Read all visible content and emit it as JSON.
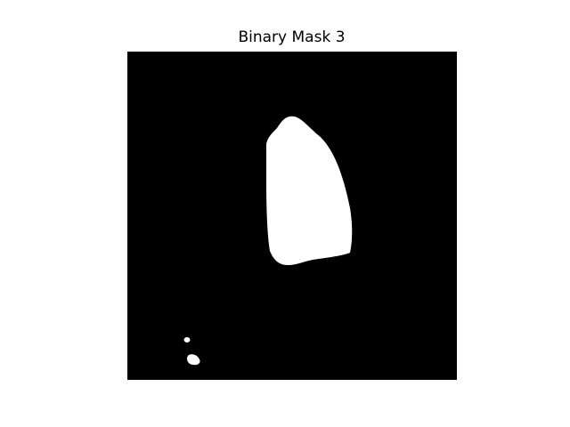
{
  "figure": {
    "title": "Binary Mask 3"
  },
  "mask": {
    "background_color": "#000000",
    "foreground_color": "#ffffff",
    "regions": [
      "main-blob",
      "small-dot",
      "small-blob"
    ]
  }
}
